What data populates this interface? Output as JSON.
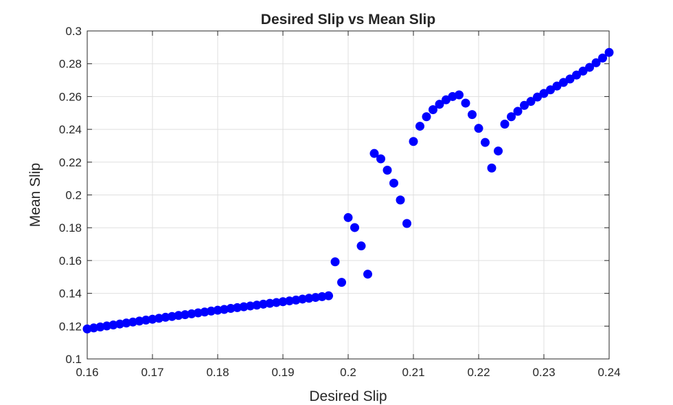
{
  "chart_data": {
    "type": "scatter",
    "title": "Desired Slip vs Mean Slip",
    "xlabel": "Desired Slip",
    "ylabel": "Mean Slip",
    "xlim": [
      0.16,
      0.24
    ],
    "ylim": [
      0.1,
      0.3
    ],
    "xticks": [
      "0.16",
      "0.17",
      "0.18",
      "0.19",
      "0.2",
      "0.21",
      "0.22",
      "0.23",
      "0.24"
    ],
    "yticks": [
      "0.1",
      "0.12",
      "0.14",
      "0.16",
      "0.18",
      "0.2",
      "0.22",
      "0.24",
      "0.26",
      "0.28",
      "0.3"
    ],
    "grid": true,
    "marker_color": "#0000ff",
    "series": [
      {
        "x": [
          0.16,
          0.161,
          0.162,
          0.163,
          0.164,
          0.165,
          0.166,
          0.167,
          0.168,
          0.169,
          0.17,
          0.171,
          0.172,
          0.173,
          0.174,
          0.175,
          0.176,
          0.177,
          0.178,
          0.179,
          0.18,
          0.181,
          0.182,
          0.183,
          0.184,
          0.185,
          0.186,
          0.187,
          0.188,
          0.189,
          0.19,
          0.191,
          0.192,
          0.193,
          0.194,
          0.195,
          0.196,
          0.197,
          0.198,
          0.199,
          0.2,
          0.201,
          0.202,
          0.203,
          0.204,
          0.205,
          0.206,
          0.207,
          0.208,
          0.209,
          0.21,
          0.211,
          0.212,
          0.213,
          0.214,
          0.215,
          0.216,
          0.217,
          0.218,
          0.219,
          0.22,
          0.221,
          0.222,
          0.223,
          0.224,
          0.225,
          0.226,
          0.227,
          0.228,
          0.229,
          0.23,
          0.231,
          0.232,
          0.233,
          0.234,
          0.235,
          0.236,
          0.237,
          0.238,
          0.239,
          0.24
        ],
        "y": [
          0.1183,
          0.1189,
          0.1195,
          0.1201,
          0.1207,
          0.1213,
          0.1219,
          0.1225,
          0.1231,
          0.1237,
          0.1242,
          0.1248,
          0.1254,
          0.1259,
          0.1265,
          0.127,
          0.1275,
          0.1281,
          0.1286,
          0.1292,
          0.1297,
          0.1302,
          0.1308,
          0.1313,
          0.1318,
          0.1323,
          0.1328,
          0.1334,
          0.1339,
          0.1344,
          0.1349,
          0.1354,
          0.1359,
          0.1365,
          0.137,
          0.1375,
          0.138,
          0.1385,
          0.1592,
          0.1467,
          0.1862,
          0.1801,
          0.1689,
          0.1517,
          0.2253,
          0.222,
          0.2151,
          0.2072,
          0.1969,
          0.1826,
          0.2326,
          0.2419,
          0.2477,
          0.252,
          0.2553,
          0.258,
          0.26,
          0.261,
          0.256,
          0.249,
          0.2406,
          0.232,
          0.2164,
          0.2268,
          0.2432,
          0.2477,
          0.251,
          0.2546,
          0.257,
          0.2597,
          0.2619,
          0.2641,
          0.2664,
          0.2686,
          0.2707,
          0.2731,
          0.2755,
          0.2778,
          0.2806,
          0.2835,
          0.2869
        ]
      }
    ]
  }
}
